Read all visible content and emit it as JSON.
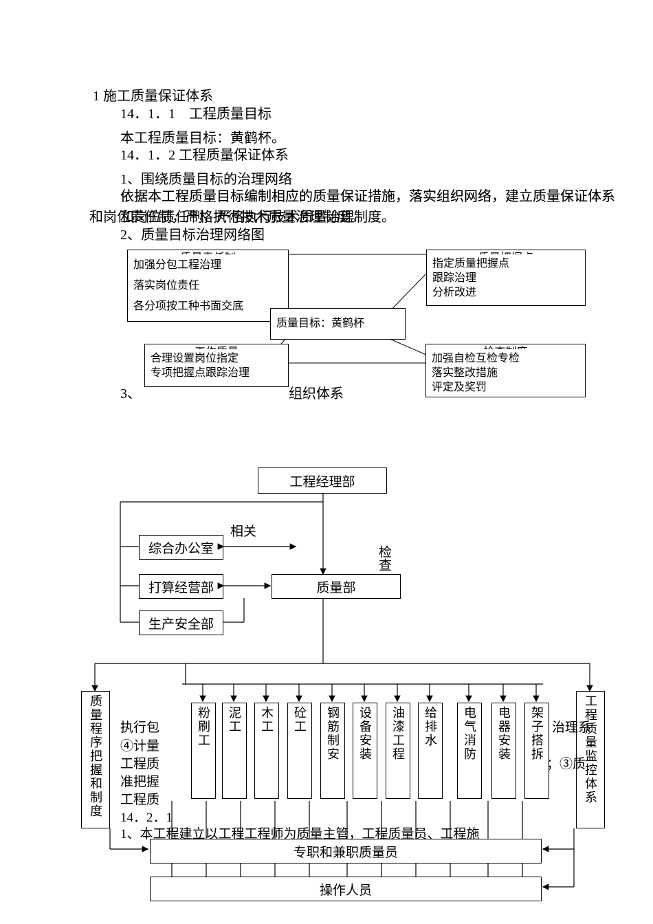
{
  "heading1": "1 施工质量保证体系",
  "h1411": "14．1．1　工程质量目标",
  "p1": "本工程质量目标：黄鹤杯。",
  "h1412": "14．1．2 工程质量保证体系",
  "p2": "1、围绕质量目标的治理网络",
  "p3": "依据本工程质量目标编制相应的质量保证措施，落实组织网络，建立质量保证体系和岗位责任制，严格执行技术质量治理制度。",
  "p4": "2、质量目标治理网络图",
  "diagram1": {
    "box_tl_title": "质量责任制",
    "box_tl_l1": "加强分包工程治理",
    "box_tl_l2": "落实岗位责任",
    "box_tl_l3": "各分项按工种书面交底",
    "center": "质量目标：黄鹤杯",
    "box_tr_title": "质量把握点",
    "box_tr_l1": "指定质量把握点",
    "box_tr_l2": "跟踪治理",
    "box_tr_l3": "分析改进",
    "box_bl_title": "工作质量",
    "box_bl_l1": "合理设置岗位指定",
    "box_bl_l2": "专项把握点跟踪治理",
    "box_br_title": "检查制度",
    "box_br_l1": "加强自检互检专检",
    "box_br_l2": "落实整改措施",
    "box_br_l3": "评定及奖罚"
  },
  "p5": "3、",
  "p5b": "组织体系",
  "diagram2": {
    "top": "工程经理部",
    "left1": "综合办公室",
    "left2": "打算经营部",
    "left3": "生产安全部",
    "label_related": "相关",
    "label_check": "检查",
    "quality_dept": "质量部",
    "left_tall": "质量程序把握和制度",
    "right_tall": "工程质量监控体系",
    "workers": [
      "粉刷工",
      "泥工",
      "木工",
      "砼工",
      "钢筋制安",
      "设备安装",
      "油漆工程",
      "给排水",
      "电气消防",
      "电器安装",
      "架子搭拆"
    ],
    "mid_text_l1": "执行包",
    "mid_text_l2": "④计量",
    "mid_text_l3": "工程质",
    "mid_text_l4": "准把握",
    "mid_text_l5": "工程质",
    "mid_text_r1": "治理系",
    "mid_text_r2": "；③质",
    "h1421": "14．2．1",
    "p6": "1、本工程建立以工程工程师为质量主管，工程质量员、工程施",
    "bottom1": "专职和兼职质量员",
    "bottom2": "操作人员"
  }
}
